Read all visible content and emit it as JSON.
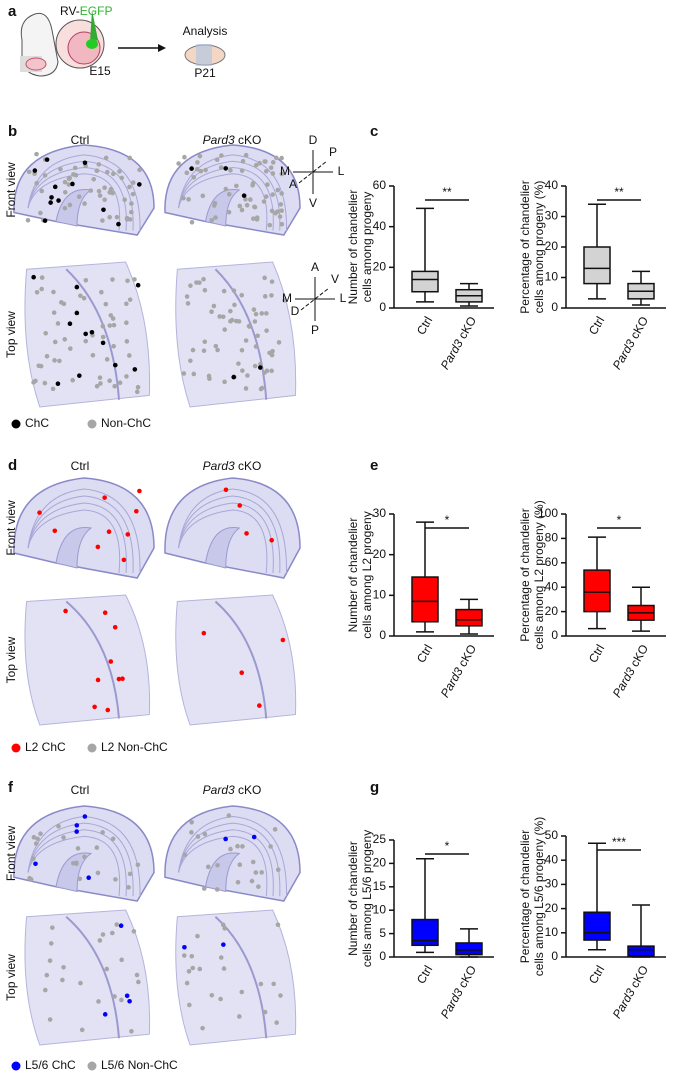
{
  "panel_a": {
    "label": "a",
    "virus": "RV-",
    "virus_marker": "EGFP",
    "stage_start": "E15",
    "analysis": "Analysis",
    "stage_end": "P21"
  },
  "brain_panels": [
    {
      "label": "b",
      "conditions": [
        "Ctrl",
        "Pard3 cKO"
      ],
      "views": [
        "Front view",
        "Top view"
      ],
      "front_axes": {
        "up": "D",
        "down": "V",
        "left": "M",
        "right": "L",
        "far": "P",
        "near": "A"
      },
      "top_axes": {
        "up": "A",
        "down": "P",
        "left": "M",
        "right": "L",
        "far": "V",
        "near": "D"
      },
      "legend": [
        {
          "name": "ChC",
          "color": "#000000"
        },
        {
          "name": "Non-ChC",
          "color": "#a6a6a6"
        }
      ]
    },
    {
      "label": "d",
      "conditions": [
        "Ctrl",
        "Pard3 cKO"
      ],
      "views": [
        "Front view",
        "Top view"
      ],
      "legend": [
        {
          "name": "L2 ChC",
          "color": "#ff0000"
        },
        {
          "name": "L2 Non-ChC",
          "color": "#a6a6a6"
        }
      ]
    },
    {
      "label": "f",
      "conditions": [
        "Ctrl",
        "Pard3 cKO"
      ],
      "views": [
        "Front view",
        "Top view"
      ],
      "legend": [
        {
          "name": "L5/6 ChC",
          "color": "#0000ff"
        },
        {
          "name": "L5/6 Non-ChC",
          "color": "#a6a6a6"
        }
      ]
    }
  ],
  "chart_panels": [
    "c",
    "e",
    "g"
  ],
  "chart_data": [
    {
      "type": "box",
      "ylabel": [
        "Number of chandelier",
        "cells among progeny"
      ],
      "categories": [
        "Ctrl",
        "Pard3 cKO"
      ],
      "color": "#d3d3d3",
      "boxes": [
        {
          "min": 3,
          "q1": 8,
          "median": 14,
          "q3": 18,
          "max": 49
        },
        {
          "min": 1,
          "q1": 3,
          "median": 6,
          "q3": 9,
          "max": 12
        }
      ],
      "ylim": [
        0,
        60
      ],
      "yticks": [
        0,
        20,
        40,
        60
      ],
      "significance": "**"
    },
    {
      "type": "box",
      "ylabel": [
        "Percentage of chandelier",
        "cells among progeny (%)"
      ],
      "categories": [
        "Ctrl",
        "Pard3 cKO"
      ],
      "color": "#d3d3d3",
      "boxes": [
        {
          "min": 3,
          "q1": 8,
          "median": 13,
          "q3": 20,
          "max": 34
        },
        {
          "min": 1,
          "q1": 3,
          "median": 5.5,
          "q3": 8,
          "max": 12
        }
      ],
      "ylim": [
        0,
        40
      ],
      "yticks": [
        0,
        10,
        20,
        30,
        40
      ],
      "significance": "**"
    },
    {
      "type": "box",
      "ylabel": [
        "Number of chandelier",
        "cells among L2 progeny"
      ],
      "categories": [
        "Ctrl",
        "Pard3 cKO"
      ],
      "color": "#ff0000",
      "boxes": [
        {
          "min": 1,
          "q1": 3.5,
          "median": 8.5,
          "q3": 14.5,
          "max": 28
        },
        {
          "min": 0.5,
          "q1": 2.5,
          "median": 4,
          "q3": 6.5,
          "max": 9
        }
      ],
      "ylim": [
        0,
        30
      ],
      "yticks": [
        0,
        10,
        20,
        30
      ],
      "significance": "*"
    },
    {
      "type": "box",
      "ylabel": [
        "Percentage of chandelier",
        "cells among L2 progeny (%)"
      ],
      "categories": [
        "Ctrl",
        "Pard3 cKO"
      ],
      "color": "#ff0000",
      "boxes": [
        {
          "min": 6,
          "q1": 20,
          "median": 36,
          "q3": 54,
          "max": 81
        },
        {
          "min": 4,
          "q1": 13,
          "median": 19,
          "q3": 25,
          "max": 40
        }
      ],
      "ylim": [
        0,
        100
      ],
      "yticks": [
        0,
        20,
        40,
        60,
        80,
        100
      ],
      "significance": "*"
    },
    {
      "type": "box",
      "ylabel": [
        "Number of chandelier",
        "cells among L5/6 progeny"
      ],
      "categories": [
        "Ctrl",
        "Pard3 cKO"
      ],
      "color": "#0000ff",
      "boxes": [
        {
          "min": 1,
          "q1": 2.5,
          "median": 3.5,
          "q3": 8,
          "max": 21
        },
        {
          "min": 0,
          "q1": 0.5,
          "median": 1.5,
          "q3": 3,
          "max": 6
        }
      ],
      "ylim": [
        0,
        25
      ],
      "yticks": [
        0,
        5,
        10,
        15,
        20,
        25
      ],
      "significance": "*"
    },
    {
      "type": "box",
      "ylabel": [
        "Percentage of chandelier",
        "cells among L5/6 progeny (%)"
      ],
      "categories": [
        "Ctrl",
        "Pard3 cKO"
      ],
      "color": "#0000ff",
      "boxes": [
        {
          "min": 3,
          "q1": 7,
          "median": 10,
          "q3": 18.5,
          "max": 47
        },
        {
          "min": 0,
          "q1": 0.5,
          "median": 3,
          "q3": 4.5,
          "max": 21.5
        }
      ],
      "ylim": [
        0,
        50
      ],
      "yticks": [
        0,
        10,
        20,
        30,
        40,
        50
      ],
      "significance": "***"
    }
  ]
}
